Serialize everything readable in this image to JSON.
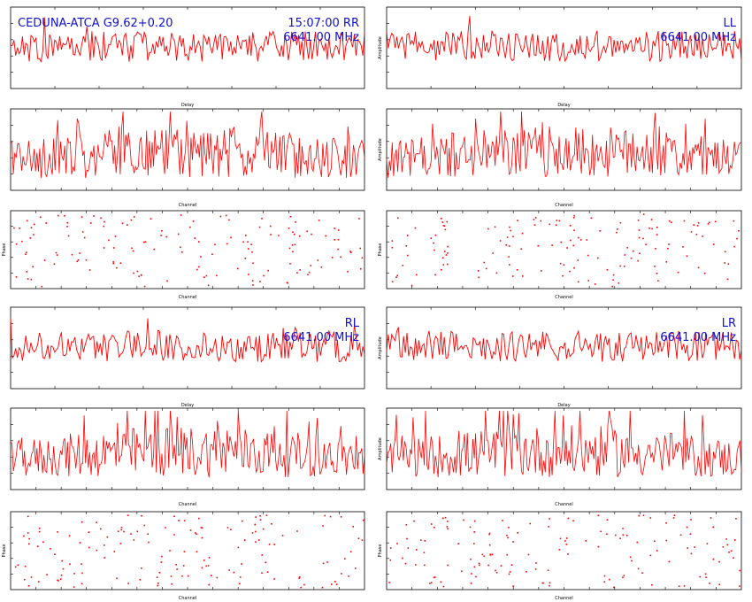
{
  "colors": {
    "trace": "#ff0000",
    "annotation": "#1010d0",
    "axis": "#000000",
    "background": "#ffffff"
  },
  "source": "CEDUNA-ATCA G9.62+0.20",
  "time": "15:07:00",
  "frequency": "6641.00 MHz",
  "chart_data": [
    {
      "panel": "RR",
      "type": "line",
      "xlabel": "Delay",
      "ylabel": "",
      "ylim": [
        2,
        8
      ],
      "annotations": [
        "CEDUNA-ATCA G9.62+0.20",
        "15:07:00  RR",
        "6641.00 MHz"
      ]
    },
    {
      "panel": "RR",
      "type": "line",
      "xlabel": "Channel",
      "ylabel": "",
      "ylim": [
        0,
        5
      ]
    },
    {
      "panel": "RR",
      "type": "scatter",
      "xlabel": "Channel",
      "ylabel": "Phase",
      "ylim": [
        -180,
        180
      ]
    },
    {
      "panel": "LL",
      "type": "line",
      "xlabel": "Delay",
      "ylabel": "Amplitude",
      "ylim": [
        2,
        8
      ],
      "annotations": [
        "LL",
        "6641.00 MHz"
      ]
    },
    {
      "panel": "LL",
      "type": "line",
      "xlabel": "Channel",
      "ylabel": "Amplitude",
      "ylim": [
        0,
        5
      ]
    },
    {
      "panel": "LL",
      "type": "scatter",
      "xlabel": "Channel",
      "ylabel": "Phase",
      "ylim": [
        -180,
        180
      ]
    },
    {
      "panel": "RL",
      "type": "line",
      "xlabel": "Delay",
      "ylabel": "",
      "ylim": [
        2,
        8
      ],
      "annotations": [
        "RL",
        "6641.00 MHz"
      ]
    },
    {
      "panel": "RL",
      "type": "line",
      "xlabel": "Channel",
      "ylabel": "",
      "ylim": [
        0,
        5
      ]
    },
    {
      "panel": "RL",
      "type": "scatter",
      "xlabel": "Channel",
      "ylabel": "Phase",
      "ylim": [
        -180,
        180
      ]
    },
    {
      "panel": "LR",
      "type": "line",
      "xlabel": "Delay",
      "ylabel": "Amplitude",
      "ylim": [
        2,
        8
      ],
      "annotations": [
        "LR",
        "6641.00 MHz"
      ]
    },
    {
      "panel": "LR",
      "type": "line",
      "xlabel": "Channel",
      "ylabel": "Amplitude",
      "ylim": [
        0,
        5
      ]
    },
    {
      "panel": "LR",
      "type": "scatter",
      "xlabel": "Channel",
      "ylabel": "Phase",
      "ylim": [
        -180,
        180
      ]
    }
  ]
}
